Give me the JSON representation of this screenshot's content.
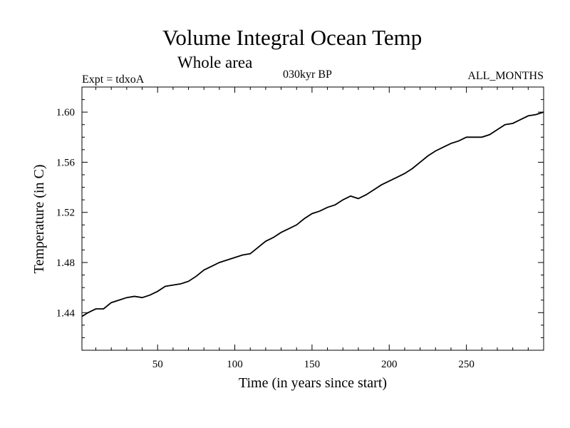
{
  "chart_data": {
    "type": "line",
    "title": "Volume Integral Ocean Temp",
    "subtitle": "Whole area",
    "left_label": "Expt = tdxoA",
    "center_label": "030kyr BP",
    "right_label": "ALL_MONTHS",
    "xlabel": "Time (in years since start)",
    "ylabel": "Temperature (in C)",
    "xlim": [
      1,
      300
    ],
    "ylim": [
      1.41,
      1.62
    ],
    "xticks": [
      50,
      100,
      150,
      200,
      250
    ],
    "xtick_labels": [
      "50",
      "100",
      "150",
      "200",
      "250"
    ],
    "yticks": [
      1.44,
      1.48,
      1.52,
      1.56,
      1.6
    ],
    "ytick_labels": [
      "1.44",
      "1.48",
      "1.52",
      "1.56",
      "1.60"
    ],
    "grid": false,
    "series": [
      {
        "x": [
          1,
          5,
          10,
          15,
          20,
          25,
          30,
          35,
          40,
          45,
          50,
          55,
          60,
          65,
          70,
          75,
          80,
          85,
          90,
          95,
          100,
          105,
          110,
          115,
          120,
          125,
          130,
          135,
          140,
          145,
          150,
          155,
          160,
          165,
          170,
          175,
          180,
          185,
          190,
          195,
          200,
          205,
          210,
          215,
          220,
          225,
          230,
          235,
          240,
          245,
          250,
          255,
          260,
          265,
          270,
          275,
          280,
          285,
          290,
          295,
          300
        ],
        "values": [
          1.437,
          1.44,
          1.443,
          1.443,
          1.448,
          1.45,
          1.452,
          1.453,
          1.452,
          1.454,
          1.457,
          1.461,
          1.462,
          1.463,
          1.465,
          1.469,
          1.474,
          1.477,
          1.48,
          1.482,
          1.484,
          1.486,
          1.487,
          1.492,
          1.497,
          1.5,
          1.504,
          1.507,
          1.51,
          1.515,
          1.519,
          1.521,
          1.524,
          1.526,
          1.53,
          1.533,
          1.531,
          1.534,
          1.538,
          1.542,
          1.545,
          1.548,
          1.551,
          1.555,
          1.56,
          1.565,
          1.569,
          1.572,
          1.575,
          1.577,
          1.58,
          1.58,
          1.58,
          1.582,
          1.586,
          1.59,
          1.591,
          1.594,
          1.597,
          1.598,
          1.6
        ]
      }
    ]
  }
}
